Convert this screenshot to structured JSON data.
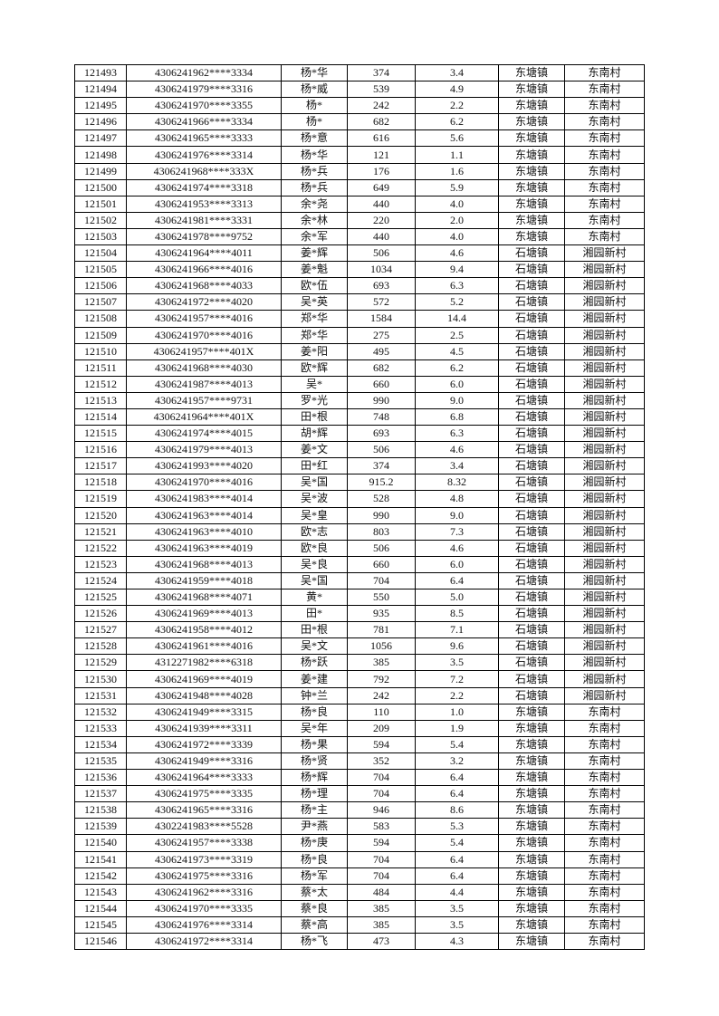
{
  "rows": [
    [
      "121493",
      "4306241962****3334",
      "杨*华",
      "374",
      "3.4",
      "东塘镇",
      "东南村"
    ],
    [
      "121494",
      "4306241979****3316",
      "杨*威",
      "539",
      "4.9",
      "东塘镇",
      "东南村"
    ],
    [
      "121495",
      "4306241970****3355",
      "杨*",
      "242",
      "2.2",
      "东塘镇",
      "东南村"
    ],
    [
      "121496",
      "4306241966****3334",
      "杨*",
      "682",
      "6.2",
      "东塘镇",
      "东南村"
    ],
    [
      "121497",
      "4306241965****3333",
      "杨*意",
      "616",
      "5.6",
      "东塘镇",
      "东南村"
    ],
    [
      "121498",
      "4306241976****3314",
      "杨*华",
      "121",
      "1.1",
      "东塘镇",
      "东南村"
    ],
    [
      "121499",
      "4306241968****333X",
      "杨*兵",
      "176",
      "1.6",
      "东塘镇",
      "东南村"
    ],
    [
      "121500",
      "4306241974****3318",
      "杨*兵",
      "649",
      "5.9",
      "东塘镇",
      "东南村"
    ],
    [
      "121501",
      "4306241953****3313",
      "余*尧",
      "440",
      "4.0",
      "东塘镇",
      "东南村"
    ],
    [
      "121502",
      "4306241981****3331",
      "余*林",
      "220",
      "2.0",
      "东塘镇",
      "东南村"
    ],
    [
      "121503",
      "4306241978****9752",
      "余*军",
      "440",
      "4.0",
      "东塘镇",
      "东南村"
    ],
    [
      "121504",
      "4306241964****4011",
      "姜*辉",
      "506",
      "4.6",
      "石塘镇",
      "湘园新村"
    ],
    [
      "121505",
      "4306241966****4016",
      "姜*魁",
      "1034",
      "9.4",
      "石塘镇",
      "湘园新村"
    ],
    [
      "121506",
      "4306241968****4033",
      "欧*伍",
      "693",
      "6.3",
      "石塘镇",
      "湘园新村"
    ],
    [
      "121507",
      "4306241972****4020",
      "吴*英",
      "572",
      "5.2",
      "石塘镇",
      "湘园新村"
    ],
    [
      "121508",
      "4306241957****4016",
      "郑*华",
      "1584",
      "14.4",
      "石塘镇",
      "湘园新村"
    ],
    [
      "121509",
      "4306241970****4016",
      "郑*华",
      "275",
      "2.5",
      "石塘镇",
      "湘园新村"
    ],
    [
      "121510",
      "4306241957****401X",
      "姜*阳",
      "495",
      "4.5",
      "石塘镇",
      "湘园新村"
    ],
    [
      "121511",
      "4306241968****4030",
      "欧*辉",
      "682",
      "6.2",
      "石塘镇",
      "湘园新村"
    ],
    [
      "121512",
      "4306241987****4013",
      "吴*",
      "660",
      "6.0",
      "石塘镇",
      "湘园新村"
    ],
    [
      "121513",
      "4306241957****9731",
      "罗*光",
      "990",
      "9.0",
      "石塘镇",
      "湘园新村"
    ],
    [
      "121514",
      "4306241964****401X",
      "田*根",
      "748",
      "6.8",
      "石塘镇",
      "湘园新村"
    ],
    [
      "121515",
      "4306241974****4015",
      "胡*辉",
      "693",
      "6.3",
      "石塘镇",
      "湘园新村"
    ],
    [
      "121516",
      "4306241979****4013",
      "姜*文",
      "506",
      "4.6",
      "石塘镇",
      "湘园新村"
    ],
    [
      "121517",
      "4306241993****4020",
      "田*红",
      "374",
      "3.4",
      "石塘镇",
      "湘园新村"
    ],
    [
      "121518",
      "4306241970****4016",
      "吴*国",
      "915.2",
      "8.32",
      "石塘镇",
      "湘园新村"
    ],
    [
      "121519",
      "4306241983****4014",
      "吴*波",
      "528",
      "4.8",
      "石塘镇",
      "湘园新村"
    ],
    [
      "121520",
      "4306241963****4014",
      "吴*皇",
      "990",
      "9.0",
      "石塘镇",
      "湘园新村"
    ],
    [
      "121521",
      "4306241963****4010",
      "欧*志",
      "803",
      "7.3",
      "石塘镇",
      "湘园新村"
    ],
    [
      "121522",
      "4306241963****4019",
      "欧*良",
      "506",
      "4.6",
      "石塘镇",
      "湘园新村"
    ],
    [
      "121523",
      "4306241968****4013",
      "吴*良",
      "660",
      "6.0",
      "石塘镇",
      "湘园新村"
    ],
    [
      "121524",
      "4306241959****4018",
      "吴*国",
      "704",
      "6.4",
      "石塘镇",
      "湘园新村"
    ],
    [
      "121525",
      "4306241968****4071",
      "黄*",
      "550",
      "5.0",
      "石塘镇",
      "湘园新村"
    ],
    [
      "121526",
      "4306241969****4013",
      "田*",
      "935",
      "8.5",
      "石塘镇",
      "湘园新村"
    ],
    [
      "121527",
      "4306241958****4012",
      "田*根",
      "781",
      "7.1",
      "石塘镇",
      "湘园新村"
    ],
    [
      "121528",
      "4306241961****4016",
      "吴*文",
      "1056",
      "9.6",
      "石塘镇",
      "湘园新村"
    ],
    [
      "121529",
      "4312271982****6318",
      "杨*跃",
      "385",
      "3.5",
      "石塘镇",
      "湘园新村"
    ],
    [
      "121530",
      "4306241969****4019",
      "姜*建",
      "792",
      "7.2",
      "石塘镇",
      "湘园新村"
    ],
    [
      "121531",
      "4306241948****4028",
      "钟*兰",
      "242",
      "2.2",
      "石塘镇",
      "湘园新村"
    ],
    [
      "121532",
      "4306241949****3315",
      "杨*良",
      "110",
      "1.0",
      "东塘镇",
      "东南村"
    ],
    [
      "121533",
      "4306241939****3311",
      "吴*年",
      "209",
      "1.9",
      "东塘镇",
      "东南村"
    ],
    [
      "121534",
      "4306241972****3339",
      "杨*果",
      "594",
      "5.4",
      "东塘镇",
      "东南村"
    ],
    [
      "121535",
      "4306241949****3316",
      "杨*贤",
      "352",
      "3.2",
      "东塘镇",
      "东南村"
    ],
    [
      "121536",
      "4306241964****3333",
      "杨*辉",
      "704",
      "6.4",
      "东塘镇",
      "东南村"
    ],
    [
      "121537",
      "4306241975****3335",
      "杨*理",
      "704",
      "6.4",
      "东塘镇",
      "东南村"
    ],
    [
      "121538",
      "4306241965****3316",
      "杨*主",
      "946",
      "8.6",
      "东塘镇",
      "东南村"
    ],
    [
      "121539",
      "4302241983****5528",
      "尹*燕",
      "583",
      "5.3",
      "东塘镇",
      "东南村"
    ],
    [
      "121540",
      "4306241957****3338",
      "杨*庚",
      "594",
      "5.4",
      "东塘镇",
      "东南村"
    ],
    [
      "121541",
      "4306241973****3319",
      "杨*良",
      "704",
      "6.4",
      "东塘镇",
      "东南村"
    ],
    [
      "121542",
      "4306241975****3316",
      "杨*军",
      "704",
      "6.4",
      "东塘镇",
      "东南村"
    ],
    [
      "121543",
      "4306241962****3316",
      "蔡*太",
      "484",
      "4.4",
      "东塘镇",
      "东南村"
    ],
    [
      "121544",
      "4306241970****3335",
      "蔡*良",
      "385",
      "3.5",
      "东塘镇",
      "东南村"
    ],
    [
      "121545",
      "4306241976****3314",
      "蔡*高",
      "385",
      "3.5",
      "东塘镇",
      "东南村"
    ],
    [
      "121546",
      "4306241972****3314",
      "杨*飞",
      "473",
      "4.3",
      "东塘镇",
      "东南村"
    ]
  ]
}
